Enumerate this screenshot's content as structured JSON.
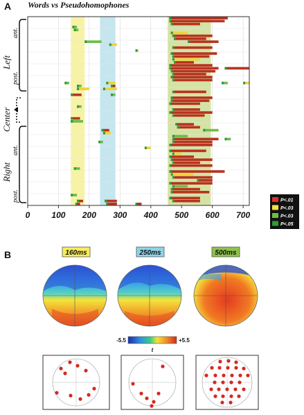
{
  "panel_a_letter": "A",
  "panel_b_letter": "B",
  "chart_data": {
    "type": "heatmap",
    "title": "Words vs Pseudohomophones",
    "x_range": [
      0,
      720
    ],
    "x_ticks": [
      0,
      100,
      200,
      300,
      400,
      500,
      600,
      700
    ],
    "x_tick_labels": [
      "0",
      "100",
      "200",
      "300",
      "400",
      "500",
      "600",
      "700"
    ],
    "row_count": 64,
    "highlight_windows": [
      {
        "from": 140,
        "to": 185,
        "color": "#f7f3a6"
      },
      {
        "from": 235,
        "to": 285,
        "color": "#c5e6ef"
      },
      {
        "from": 455,
        "to": 595,
        "color": "#d4e3a4"
      }
    ],
    "groups": [
      {
        "label": "Left",
        "sublabels": [
          "ant.",
          "post."
        ]
      },
      {
        "label": "Center",
        "sublabels": []
      },
      {
        "label": "Right",
        "sublabels": [
          "ant.",
          "post."
        ]
      }
    ],
    "legend": [
      {
        "label": "P<.01",
        "color": "#e0302a"
      },
      {
        "label": "P<.03",
        "color": "#f3e43a"
      },
      {
        "label": "P<.03",
        "color": "#6fbd45"
      },
      {
        "label": "P<.05",
        "color": "#2f9a3a"
      }
    ],
    "significance_segments": [
      {
        "row": 0,
        "from": 460,
        "to": 650,
        "level": 1
      },
      {
        "row": 1,
        "from": 460,
        "to": 640,
        "level": 1
      },
      {
        "row": 2,
        "from": 465,
        "to": 560,
        "level": 1
      },
      {
        "row": 3,
        "from": 145,
        "to": 160,
        "level": 3
      },
      {
        "row": 4,
        "from": 150,
        "to": 165,
        "level": 3
      },
      {
        "row": 5,
        "from": 465,
        "to": 520,
        "level": 2
      },
      {
        "row": 6,
        "from": 470,
        "to": 600,
        "level": 1
      },
      {
        "row": 7,
        "from": 475,
        "to": 580,
        "level": 1
      },
      {
        "row": 8,
        "from": 185,
        "to": 240,
        "level": 3
      },
      {
        "row": 8,
        "from": 520,
        "to": 620,
        "level": 1
      },
      {
        "row": 9,
        "from": 265,
        "to": 290,
        "level": 2
      },
      {
        "row": 10,
        "from": 470,
        "to": 600,
        "level": 1
      },
      {
        "row": 11,
        "from": 350,
        "to": 360,
        "level": 2
      },
      {
        "row": 12,
        "from": 465,
        "to": 615,
        "level": 1
      },
      {
        "row": 13,
        "from": 470,
        "to": 590,
        "level": 1
      },
      {
        "row": 14,
        "from": 470,
        "to": 560,
        "level": 2
      },
      {
        "row": 15,
        "from": 475,
        "to": 540,
        "level": 1
      },
      {
        "row": 16,
        "from": 460,
        "to": 600,
        "level": 1
      },
      {
        "row": 17,
        "from": 460,
        "to": 620,
        "level": 1
      },
      {
        "row": 17,
        "from": 640,
        "to": 720,
        "level": 1
      },
      {
        "row": 18,
        "from": 465,
        "to": 610,
        "level": 1
      },
      {
        "row": 19,
        "from": 470,
        "to": 580,
        "level": 1
      },
      {
        "row": 20,
        "from": 465,
        "to": 600,
        "level": 1
      },
      {
        "row": 21,
        "from": 470,
        "to": 600,
        "level": 1
      },
      {
        "row": 22,
        "from": 120,
        "to": 135,
        "level": 3
      },
      {
        "row": 22,
        "from": 255,
        "to": 285,
        "level": 2
      },
      {
        "row": 22,
        "from": 630,
        "to": 650,
        "level": 3
      },
      {
        "row": 22,
        "from": 700,
        "to": 720,
        "level": 2
      },
      {
        "row": 23,
        "from": 160,
        "to": 175,
        "level": 3
      },
      {
        "row": 23,
        "from": 270,
        "to": 285,
        "level": 1
      },
      {
        "row": 24,
        "from": 160,
        "to": 200,
        "level": 2
      },
      {
        "row": 24,
        "from": 245,
        "to": 290,
        "level": 2
      },
      {
        "row": 25,
        "from": 470,
        "to": 580,
        "level": 1
      },
      {
        "row": 26,
        "from": 140,
        "to": 175,
        "level": 1
      },
      {
        "row": 26,
        "from": 270,
        "to": 285,
        "level": 3
      },
      {
        "row": 27,
        "from": 465,
        "to": 600,
        "level": 1
      },
      {
        "row": 28,
        "from": 465,
        "to": 590,
        "level": 1
      },
      {
        "row": 29,
        "from": 460,
        "to": 560,
        "level": 1
      },
      {
        "row": 30,
        "from": 160,
        "to": 175,
        "level": 3
      },
      {
        "row": 31,
        "from": 470,
        "to": 560,
        "level": 1
      },
      {
        "row": 32,
        "from": 460,
        "to": 600,
        "level": 1
      },
      {
        "row": 33,
        "from": 470,
        "to": 575,
        "level": 1
      },
      {
        "row": 34,
        "from": 140,
        "to": 170,
        "level": 1
      },
      {
        "row": 35,
        "from": 140,
        "to": 180,
        "level": 3
      },
      {
        "row": 36,
        "from": 480,
        "to": 540,
        "level": 1
      },
      {
        "row": 37,
        "from": 485,
        "to": 560,
        "level": 1
      },
      {
        "row": 38,
        "from": 240,
        "to": 265,
        "level": 1
      },
      {
        "row": 38,
        "from": 570,
        "to": 620,
        "level": 3
      },
      {
        "row": 39,
        "from": 245,
        "to": 270,
        "level": 2
      },
      {
        "row": 40,
        "from": 470,
        "to": 520,
        "level": 3
      },
      {
        "row": 41,
        "from": 470,
        "to": 620,
        "level": 1
      },
      {
        "row": 41,
        "from": 640,
        "to": 660,
        "level": 3
      },
      {
        "row": 42,
        "from": 230,
        "to": 245,
        "level": 3
      },
      {
        "row": 42,
        "from": 470,
        "to": 600,
        "level": 1
      },
      {
        "row": 43,
        "from": 460,
        "to": 600,
        "level": 1
      },
      {
        "row": 44,
        "from": 380,
        "to": 400,
        "level": 2
      },
      {
        "row": 45,
        "from": 460,
        "to": 580,
        "level": 1
      },
      {
        "row": 46,
        "from": 470,
        "to": 500,
        "level": 2
      },
      {
        "row": 47,
        "from": 460,
        "to": 540,
        "level": 1
      },
      {
        "row": 48,
        "from": 465,
        "to": 600,
        "level": 1
      },
      {
        "row": 49,
        "from": 470,
        "to": 560,
        "level": 1
      },
      {
        "row": 50,
        "from": 460,
        "to": 600,
        "level": 1
      },
      {
        "row": 51,
        "from": 150,
        "to": 170,
        "level": 3
      },
      {
        "row": 52,
        "from": 460,
        "to": 640,
        "level": 1
      },
      {
        "row": 53,
        "from": 465,
        "to": 540,
        "level": 2
      },
      {
        "row": 54,
        "from": 470,
        "to": 600,
        "level": 1
      },
      {
        "row": 55,
        "from": 550,
        "to": 600,
        "level": 1
      },
      {
        "row": 56,
        "from": 460,
        "to": 600,
        "level": 1
      },
      {
        "row": 57,
        "from": 470,
        "to": 520,
        "level": 3
      },
      {
        "row": 58,
        "from": 465,
        "to": 560,
        "level": 1
      },
      {
        "row": 59,
        "from": 465,
        "to": 590,
        "level": 1
      },
      {
        "row": 60,
        "from": 140,
        "to": 160,
        "level": 3
      },
      {
        "row": 61,
        "from": 460,
        "to": 560,
        "level": 1
      },
      {
        "row": 62,
        "from": 160,
        "to": 180,
        "level": 1
      },
      {
        "row": 62,
        "from": 250,
        "to": 290,
        "level": 1
      },
      {
        "row": 62,
        "from": 470,
        "to": 560,
        "level": 1
      },
      {
        "row": 63,
        "from": 155,
        "to": 170,
        "level": 1
      },
      {
        "row": 63,
        "from": 255,
        "to": 290,
        "level": 1
      },
      {
        "row": 63,
        "from": 350,
        "to": 370,
        "level": 1
      }
    ]
  },
  "topomaps": [
    {
      "label": "160ms",
      "label_color": "#f7ed5a"
    },
    {
      "label": "250ms",
      "label_color": "#8fd3e8"
    },
    {
      "label": "500ms",
      "label_color": "#8fc24a"
    }
  ],
  "colorbar": {
    "min_label": "-5.5",
    "max_label": "+5.5",
    "unit_label": "t"
  }
}
